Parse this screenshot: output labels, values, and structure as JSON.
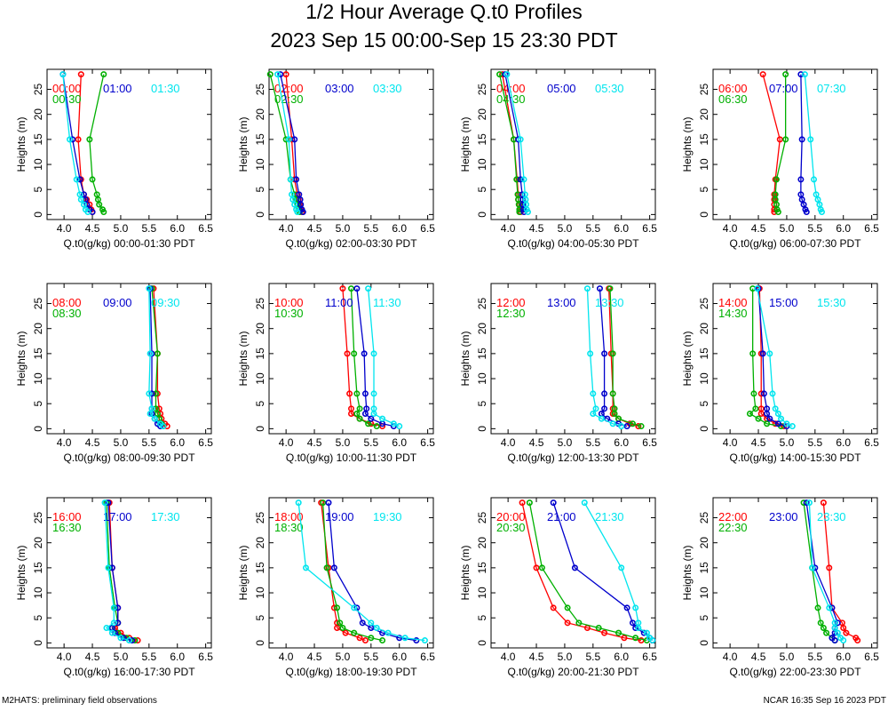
{
  "title": "1/2 Hour Average Q.t0 Profiles",
  "subtitle": "2023 Sep 15 00:00-Sep 15 23:30 PDT",
  "footer_left": "M2HATS: preliminary field observations",
  "footer_right": "NCAR 16:35 Sep 16 2023 PDT",
  "colors": {
    "red": "#ff0000",
    "blue": "#0000cc",
    "cyan": "#00e5ee",
    "green": "#00b000",
    "axis": "#000000"
  },
  "chart_data": {
    "type": "line",
    "ylabel": "Heights (m)",
    "xlim": [
      3.7,
      6.6
    ],
    "ylim": [
      -1,
      29
    ],
    "xticks": [
      4.0,
      4.5,
      5.0,
      5.5,
      6.0,
      6.5
    ],
    "xtick_labels": [
      "4.0",
      "4.5",
      "5.0",
      "5.5",
      "6.0",
      "6.5"
    ],
    "yticks": [
      0,
      5,
      10,
      15,
      20,
      25
    ],
    "ytick_labels": [
      "0",
      "5",
      "10",
      "15",
      "20",
      "25"
    ],
    "heights": [
      0.5,
      1,
      2,
      3,
      4,
      7,
      15,
      28
    ],
    "panels": [
      {
        "xlabel": "Q.t0(g/kg) 00:00-01:30 PDT",
        "series": [
          {
            "name": "00:00",
            "color": "red",
            "values": [
              4.5,
              4.48,
              4.45,
              4.4,
              4.35,
              4.3,
              4.25,
              4.3
            ]
          },
          {
            "name": "00:30",
            "color": "green",
            "values": [
              4.7,
              4.68,
              4.62,
              4.6,
              4.58,
              4.5,
              4.45,
              4.7
            ]
          },
          {
            "name": "01:00",
            "color": "blue",
            "values": [
              4.5,
              4.45,
              4.4,
              4.38,
              4.35,
              4.28,
              4.15,
              3.98
            ]
          },
          {
            "name": "01:30",
            "color": "cyan",
            "values": [
              4.42,
              4.38,
              4.35,
              4.3,
              4.28,
              4.22,
              4.1,
              3.98
            ]
          }
        ]
      },
      {
        "xlabel": "Q.t0(g/kg) 02:00-03:30 PDT",
        "series": [
          {
            "name": "02:00",
            "color": "red",
            "values": [
              4.28,
              4.26,
              4.24,
              4.22,
              4.2,
              4.15,
              4.1,
              4.0
            ]
          },
          {
            "name": "02:30",
            "color": "green",
            "values": [
              4.24,
              4.22,
              4.2,
              4.18,
              4.15,
              4.08,
              4.0,
              3.72
            ]
          },
          {
            "name": "03:00",
            "color": "blue",
            "values": [
              4.3,
              4.28,
              4.26,
              4.25,
              4.23,
              4.18,
              4.15,
              3.9
            ]
          },
          {
            "name": "03:30",
            "color": "cyan",
            "values": [
              4.2,
              4.18,
              4.15,
              4.12,
              4.1,
              4.08,
              4.05,
              3.85
            ]
          }
        ]
      },
      {
        "xlabel": "Q.t0(g/kg) 04:00-05:30 PDT",
        "series": [
          {
            "name": "04:00",
            "color": "red",
            "values": [
              4.22,
              4.21,
              4.2,
              4.18,
              4.18,
              4.16,
              4.1,
              3.9
            ]
          },
          {
            "name": "04:30",
            "color": "green",
            "values": [
              4.2,
              4.2,
              4.19,
              4.18,
              4.17,
              4.15,
              4.1,
              3.85
            ]
          },
          {
            "name": "05:00",
            "color": "blue",
            "values": [
              4.28,
              4.27,
              4.26,
              4.26,
              4.25,
              4.22,
              4.18,
              3.95
            ]
          },
          {
            "name": "05:30",
            "color": "cyan",
            "values": [
              4.35,
              4.33,
              4.32,
              4.31,
              4.3,
              4.28,
              4.22,
              3.98
            ]
          }
        ]
      },
      {
        "xlabel": "Q.t0(g/kg) 06:00-07:30 PDT",
        "series": [
          {
            "name": "06:00",
            "color": "red",
            "values": [
              4.78,
              4.78,
              4.78,
              4.78,
              4.78,
              4.8,
              4.88,
              4.58
            ]
          },
          {
            "name": "06:30",
            "color": "green",
            "values": [
              4.85,
              4.83,
              4.82,
              4.8,
              4.8,
              4.82,
              4.98,
              4.98
            ]
          },
          {
            "name": "07:00",
            "color": "blue",
            "values": [
              5.35,
              5.33,
              5.3,
              5.27,
              5.25,
              5.25,
              5.27,
              5.25
            ]
          },
          {
            "name": "07:30",
            "color": "cyan",
            "values": [
              5.62,
              5.6,
              5.58,
              5.55,
              5.52,
              5.48,
              5.42,
              5.32
            ]
          }
        ]
      },
      {
        "xlabel": "Q.t0(g/kg) 08:00-09:30 PDT",
        "series": [
          {
            "name": "08:00",
            "color": "red",
            "values": [
              5.82,
              5.78,
              5.72,
              5.7,
              5.68,
              5.65,
              5.65,
              5.58
            ]
          },
          {
            "name": "08:30",
            "color": "green",
            "values": [
              5.75,
              5.72,
              5.68,
              5.65,
              5.62,
              5.62,
              5.65,
              5.55
            ]
          },
          {
            "name": "09:00",
            "color": "blue",
            "values": [
              5.7,
              5.65,
              5.6,
              5.55,
              5.55,
              5.55,
              5.55,
              5.52
            ]
          },
          {
            "name": "09:30",
            "color": "cyan",
            "values": [
              5.75,
              5.7,
              5.6,
              5.52,
              5.55,
              5.5,
              5.52,
              5.5
            ]
          }
        ]
      },
      {
        "xlabel": "Q.t0(g/kg) 10:00-11:30 PDT",
        "series": [
          {
            "name": "10:00",
            "color": "red",
            "values": [
              5.7,
              5.5,
              5.3,
              5.15,
              5.15,
              5.12,
              5.08,
              5.0
            ]
          },
          {
            "name": "10:30",
            "color": "green",
            "values": [
              5.6,
              5.45,
              5.3,
              5.25,
              5.3,
              5.25,
              5.2,
              5.15
            ]
          },
          {
            "name": "11:00",
            "color": "blue",
            "values": [
              5.9,
              5.7,
              5.5,
              5.4,
              5.42,
              5.4,
              5.38,
              5.25
            ]
          },
          {
            "name": "11:30",
            "color": "cyan",
            "values": [
              6.0,
              5.9,
              5.7,
              5.55,
              5.55,
              5.55,
              5.55,
              5.45
            ]
          }
        ]
      },
      {
        "xlabel": "Q.t0(g/kg) 12:00-13:30 PDT",
        "series": [
          {
            "name": "12:00",
            "color": "red",
            "values": [
              6.3,
              6.15,
              5.95,
              5.85,
              5.85,
              5.85,
              5.82,
              5.78
            ]
          },
          {
            "name": "12:30",
            "color": "green",
            "values": [
              6.35,
              6.2,
              5.95,
              5.88,
              5.88,
              5.85,
              5.85,
              5.8
            ]
          },
          {
            "name": "13:00",
            "color": "blue",
            "values": [
              6.1,
              5.95,
              5.75,
              5.65,
              5.7,
              5.7,
              5.7,
              5.62
            ]
          },
          {
            "name": "13:30",
            "color": "cyan",
            "values": [
              6.0,
              5.85,
              5.65,
              5.5,
              5.55,
              5.5,
              5.45,
              5.4
            ]
          }
        ]
      },
      {
        "xlabel": "Q.t0(g/kg) 14:00-15:30 PDT",
        "series": [
          {
            "name": "14:00",
            "color": "red",
            "values": [
              4.95,
              4.8,
              4.65,
              4.55,
              4.55,
              4.55,
              4.55,
              4.52
            ]
          },
          {
            "name": "14:30",
            "color": "green",
            "values": [
              4.9,
              4.65,
              4.5,
              4.35,
              4.45,
              4.42,
              4.4,
              4.4
            ]
          },
          {
            "name": "15:00",
            "color": "blue",
            "values": [
              5.0,
              4.85,
              4.7,
              4.65,
              4.65,
              4.6,
              4.58,
              4.5
            ]
          },
          {
            "name": "15:30",
            "color": "cyan",
            "values": [
              5.1,
              5.0,
              4.9,
              4.85,
              4.8,
              4.75,
              4.7,
              4.48
            ]
          }
        ]
      },
      {
        "xlabel": "Q.t0(g/kg) 16:00-17:30 PDT",
        "series": [
          {
            "name": "16:00",
            "color": "red",
            "values": [
              5.3,
              5.15,
              5.0,
              4.9,
              4.95,
              4.95,
              4.85,
              4.8
            ]
          },
          {
            "name": "16:30",
            "color": "green",
            "values": [
              5.25,
              5.1,
              4.95,
              4.85,
              4.95,
              4.9,
              4.8,
              4.75
            ]
          },
          {
            "name": "17:00",
            "color": "blue",
            "values": [
              5.2,
              5.05,
              4.9,
              4.85,
              4.95,
              4.95,
              4.85,
              4.78
            ]
          },
          {
            "name": "17:30",
            "color": "cyan",
            "values": [
              5.15,
              5.0,
              4.85,
              4.75,
              4.88,
              4.88,
              4.78,
              4.72
            ]
          }
        ]
      },
      {
        "xlabel": "Q.t0(g/kg) 18:00-19:30 PDT",
        "series": [
          {
            "name": "18:00",
            "color": "red",
            "values": [
              5.4,
              5.3,
              5.05,
              4.9,
              4.9,
              4.85,
              4.75,
              4.62
            ]
          },
          {
            "name": "18:30",
            "color": "green",
            "values": [
              5.7,
              5.5,
              5.2,
              5.0,
              4.95,
              4.9,
              4.72,
              4.65
            ]
          },
          {
            "name": "19:00",
            "color": "blue",
            "values": [
              6.3,
              6.0,
              5.7,
              5.5,
              5.35,
              5.25,
              4.85,
              4.75
            ]
          },
          {
            "name": "19:30",
            "color": "cyan",
            "values": [
              6.45,
              6.1,
              5.8,
              5.6,
              5.5,
              5.2,
              4.35,
              4.22
            ]
          }
        ]
      },
      {
        "xlabel": "Q.t0(g/kg) 20:00-21:30 PDT",
        "series": [
          {
            "name": "20:00",
            "color": "red",
            "values": [
              6.35,
              6.05,
              5.7,
              5.4,
              5.05,
              4.8,
              4.5,
              4.25
            ]
          },
          {
            "name": "20:30",
            "color": "green",
            "values": [
              6.45,
              6.25,
              5.95,
              5.6,
              5.25,
              5.05,
              4.6,
              4.38
            ]
          },
          {
            "name": "21:00",
            "color": "blue",
            "values": [
              6.55,
              6.5,
              6.4,
              6.25,
              6.2,
              6.1,
              5.18,
              4.8
            ]
          },
          {
            "name": "21:30",
            "color": "cyan",
            "values": [
              6.55,
              6.5,
              6.45,
              6.3,
              6.3,
              6.25,
              6.0,
              5.35
            ]
          }
        ]
      },
      {
        "xlabel": "Q.t0(g/kg) 22:00-23:30 PDT",
        "series": [
          {
            "name": "22:00",
            "color": "red",
            "values": [
              6.25,
              6.22,
              6.05,
              6.0,
              5.98,
              5.8,
              5.75,
              5.65
            ]
          },
          {
            "name": "22:30",
            "color": "green",
            "values": [
              5.85,
              5.8,
              5.7,
              5.65,
              5.6,
              5.55,
              5.45,
              5.3
            ]
          },
          {
            "name": "23:00",
            "color": "blue",
            "values": [
              5.85,
              5.8,
              5.85,
              5.85,
              5.9,
              5.8,
              5.5,
              5.35
            ]
          },
          {
            "name": "23:30",
            "color": "cyan",
            "values": [
              6.0,
              5.95,
              5.9,
              5.85,
              5.85,
              5.75,
              5.45,
              5.4
            ]
          }
        ]
      }
    ]
  }
}
